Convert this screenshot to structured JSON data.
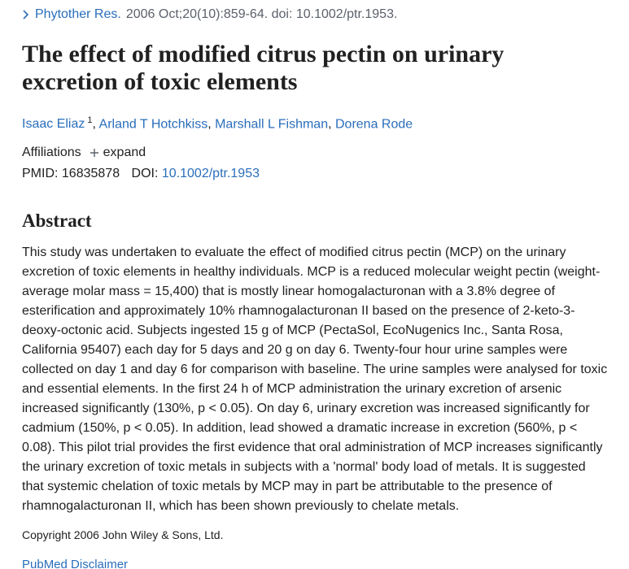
{
  "citation": {
    "journal": "Phytother Res.",
    "details": "2006 Oct;20(10):859-64. doi: 10.1002/ptr.1953."
  },
  "title": "The effect of modified citrus pectin on urinary excretion of toxic elements",
  "authors": [
    {
      "name": "Isaac Eliaz",
      "affiliation": "1"
    },
    {
      "name": "Arland T Hotchkiss"
    },
    {
      "name": "Marshall L Fishman"
    },
    {
      "name": "Dorena Rode"
    }
  ],
  "affiliations": {
    "label": "Affiliations",
    "toggle": "expand"
  },
  "identifiers": {
    "pmid_label": "PMID:",
    "pmid": "16835878",
    "doi_label": "DOI:",
    "doi": "10.1002/ptr.1953"
  },
  "abstract": {
    "heading": "Abstract",
    "text": "This study was undertaken to evaluate the effect of modified citrus pectin (MCP) on the urinary excretion of toxic elements in healthy individuals. MCP is a reduced molecular weight pectin (weight-average molar mass = 15,400) that is mostly linear homogalacturonan with a 3.8% degree of esterification and approximately 10% rhamnogalacturonan II based on the presence of 2-keto-3-deoxy-octonic acid. Subjects ingested 15 g of MCP (PectaSol, EcoNugenics Inc., Santa Rosa, California 95407) each day for 5 days and 20 g on day 6. Twenty-four hour urine samples were collected on day 1 and day 6 for comparison with baseline. The urine samples were analysed for toxic and essential elements. In the first 24 h of MCP administration the urinary excretion of arsenic increased significantly (130%, p < 0.05). On day 6, urinary excretion was increased significantly for cadmium (150%, p < 0.05). In addition, lead showed a dramatic increase in excretion (560%, p < 0.08). This pilot trial provides the first evidence that oral administration of MCP increases significantly the urinary excretion of toxic metals in subjects with a 'normal' body load of metals. It is suggested that systemic chelation of toxic metals by MCP may in part be attributable to the presence of rhamnogalacturonan II, which has been shown previously to chelate metals.",
    "copyright": "Copyright 2006 John Wiley & Sons, Ltd."
  },
  "disclaimer": "PubMed Disclaimer"
}
